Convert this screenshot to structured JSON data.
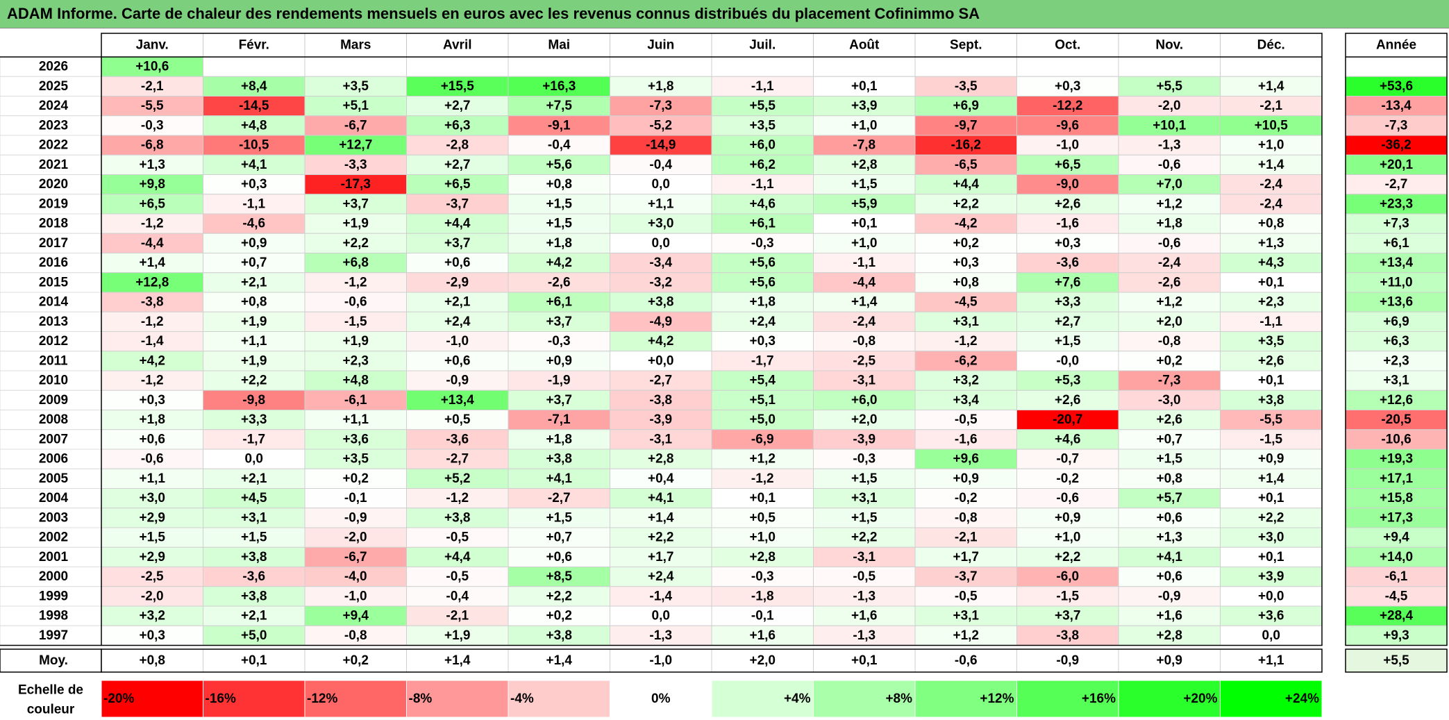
{
  "title": "ADAM Informe. Carte de chaleur des rendements mensuels en euros avec les revenus connus distribués du placement Cofinimmo SA",
  "chart_data": {
    "type": "heatmap",
    "title": "ADAM Informe. Carte de chaleur des rendements mensuels en euros avec les revenus connus distribués du placement Cofinimmo SA",
    "columns": [
      "Janv.",
      "Févr.",
      "Mars",
      "Avril",
      "Mai",
      "Juin",
      "Juil.",
      "Août",
      "Sept.",
      "Oct.",
      "Nov.",
      "Déc."
    ],
    "year_column_label": "Année",
    "rows": [
      {
        "year": "2026",
        "values": [
          "+10,6",
          "",
          "",
          "",
          "",
          "",
          "",
          "",
          "",
          "",
          "",
          ""
        ],
        "annual": ""
      },
      {
        "year": "2025",
        "values": [
          "-2,1",
          "+8,4",
          "+3,5",
          "+15,5",
          "+16,3",
          "+1,8",
          "-1,1",
          "+0,1",
          "-3,5",
          "+0,3",
          "+5,5",
          "+1,4"
        ],
        "annual": "+53,6"
      },
      {
        "year": "2024",
        "values": [
          "-5,5",
          "-14,5",
          "+5,1",
          "+2,7",
          "+7,5",
          "-7,3",
          "+5,5",
          "+3,9",
          "+6,9",
          "-12,2",
          "-2,0",
          "-2,1"
        ],
        "annual": "-13,4"
      },
      {
        "year": "2023",
        "values": [
          "-0,3",
          "+4,8",
          "-6,7",
          "+6,3",
          "-9,1",
          "-5,2",
          "+3,5",
          "+1,0",
          "-9,7",
          "-9,6",
          "+10,1",
          "+10,5"
        ],
        "annual": "-7,3"
      },
      {
        "year": "2022",
        "values": [
          "-6,8",
          "-10,5",
          "+12,7",
          "-2,8",
          "-0,4",
          "-14,9",
          "+6,0",
          "-7,8",
          "-16,2",
          "-1,0",
          "-1,3",
          "+1,0"
        ],
        "annual": "-36,2"
      },
      {
        "year": "2021",
        "values": [
          "+1,3",
          "+4,1",
          "-3,3",
          "+2,7",
          "+5,6",
          "-0,4",
          "+6,2",
          "+2,8",
          "-6,5",
          "+6,5",
          "-0,6",
          "+1,4"
        ],
        "annual": "+20,1"
      },
      {
        "year": "2020",
        "values": [
          "+9,8",
          "+0,3",
          "-17,3",
          "+6,5",
          "+0,8",
          "0,0",
          "-1,1",
          "+1,5",
          "+4,4",
          "-9,0",
          "+7,0",
          "-2,4"
        ],
        "annual": "-2,7"
      },
      {
        "year": "2019",
        "values": [
          "+6,5",
          "-1,1",
          "+3,7",
          "-3,7",
          "+1,5",
          "+1,1",
          "+4,6",
          "+5,9",
          "+2,2",
          "+2,6",
          "+1,2",
          "-2,4"
        ],
        "annual": "+23,3"
      },
      {
        "year": "2018",
        "values": [
          "-1,2",
          "-4,6",
          "+1,9",
          "+4,4",
          "+1,5",
          "+3,0",
          "+6,1",
          "+0,1",
          "-4,2",
          "-1,6",
          "+1,8",
          "+0,8"
        ],
        "annual": "+7,3"
      },
      {
        "year": "2017",
        "values": [
          "-4,4",
          "+0,9",
          "+2,2",
          "+3,7",
          "+1,8",
          "0,0",
          "-0,3",
          "+1,0",
          "+0,2",
          "+0,3",
          "-0,6",
          "+1,3"
        ],
        "annual": "+6,1"
      },
      {
        "year": "2016",
        "values": [
          "+1,4",
          "+0,7",
          "+6,8",
          "+0,6",
          "+4,2",
          "-3,4",
          "+5,6",
          "-1,1",
          "+0,3",
          "-3,6",
          "-2,4",
          "+4,3"
        ],
        "annual": "+13,4"
      },
      {
        "year": "2015",
        "values": [
          "+12,8",
          "+2,1",
          "-1,2",
          "-2,9",
          "-2,6",
          "-3,2",
          "+5,6",
          "-4,4",
          "+0,8",
          "+7,6",
          "-2,6",
          "+0,1"
        ],
        "annual": "+11,0"
      },
      {
        "year": "2014",
        "values": [
          "-3,8",
          "+0,8",
          "-0,6",
          "+2,1",
          "+6,1",
          "+3,8",
          "+1,8",
          "+1,4",
          "-4,5",
          "+3,3",
          "+1,2",
          "+2,3"
        ],
        "annual": "+13,6"
      },
      {
        "year": "2013",
        "values": [
          "-1,2",
          "+1,9",
          "-1,5",
          "+2,4",
          "+3,7",
          "-4,9",
          "+2,4",
          "-2,4",
          "+3,1",
          "+2,7",
          "+2,0",
          "-1,1"
        ],
        "annual": "+6,9"
      },
      {
        "year": "2012",
        "values": [
          "-1,4",
          "+1,1",
          "+1,9",
          "-1,0",
          "-0,3",
          "+4,2",
          "+0,3",
          "-0,8",
          "-1,2",
          "+1,5",
          "-0,8",
          "+3,5"
        ],
        "annual": "+6,3"
      },
      {
        "year": "2011",
        "values": [
          "+4,2",
          "+1,9",
          "+2,3",
          "+0,6",
          "+0,9",
          "+0,0",
          "-1,7",
          "-2,5",
          "-6,2",
          "-0,0",
          "+0,2",
          "+2,6"
        ],
        "annual": "+2,3"
      },
      {
        "year": "2010",
        "values": [
          "-1,2",
          "+2,2",
          "+4,8",
          "-0,9",
          "-1,9",
          "-2,7",
          "+5,4",
          "-3,1",
          "+3,2",
          "+5,3",
          "-7,3",
          "+0,1"
        ],
        "annual": "+3,1"
      },
      {
        "year": "2009",
        "values": [
          "+0,3",
          "-9,8",
          "-6,1",
          "+13,4",
          "+3,7",
          "-3,8",
          "+5,1",
          "+6,0",
          "+3,4",
          "+2,6",
          "-3,0",
          "+3,8"
        ],
        "annual": "+12,6"
      },
      {
        "year": "2008",
        "values": [
          "+1,8",
          "+3,3",
          "+1,1",
          "+0,5",
          "-7,1",
          "-3,9",
          "+5,0",
          "+2,0",
          "-0,5",
          "-20,7",
          "+2,6",
          "-5,5"
        ],
        "annual": "-20,5"
      },
      {
        "year": "2007",
        "values": [
          "+0,6",
          "-1,7",
          "+3,6",
          "-3,6",
          "+1,8",
          "-3,1",
          "-6,9",
          "-3,9",
          "-1,6",
          "+4,6",
          "+0,7",
          "-1,5"
        ],
        "annual": "-10,6"
      },
      {
        "year": "2006",
        "values": [
          "-0,6",
          "0,0",
          "+3,5",
          "-2,7",
          "+3,8",
          "+2,8",
          "+1,2",
          "-0,3",
          "+9,6",
          "-0,7",
          "+1,5",
          "+0,9"
        ],
        "annual": "+19,3"
      },
      {
        "year": "2005",
        "values": [
          "+1,1",
          "+2,1",
          "+0,2",
          "+5,2",
          "+4,1",
          "+0,4",
          "-1,2",
          "+1,5",
          "+0,9",
          "-0,2",
          "+0,8",
          "+1,4"
        ],
        "annual": "+17,1"
      },
      {
        "year": "2004",
        "values": [
          "+3,0",
          "+4,5",
          "-0,1",
          "-1,2",
          "-2,7",
          "+4,1",
          "+0,1",
          "+3,1",
          "-0,2",
          "-0,6",
          "+5,7",
          "+0,1"
        ],
        "annual": "+15,8"
      },
      {
        "year": "2003",
        "values": [
          "+2,9",
          "+3,1",
          "-0,9",
          "+3,8",
          "+1,5",
          "+1,4",
          "+0,5",
          "+1,5",
          "-0,8",
          "+0,9",
          "+0,6",
          "+2,2"
        ],
        "annual": "+17,3"
      },
      {
        "year": "2002",
        "values": [
          "+1,5",
          "+1,5",
          "-2,0",
          "-0,5",
          "+0,7",
          "+2,2",
          "+1,0",
          "+2,2",
          "-2,1",
          "+1,0",
          "+1,3",
          "+3,0"
        ],
        "annual": "+9,4"
      },
      {
        "year": "2001",
        "values": [
          "+2,9",
          "+3,8",
          "-6,7",
          "+4,4",
          "+0,6",
          "+1,7",
          "+2,8",
          "-3,1",
          "+1,7",
          "+2,2",
          "+4,1",
          "+0,1"
        ],
        "annual": "+14,0"
      },
      {
        "year": "2000",
        "values": [
          "-2,5",
          "-3,6",
          "-4,0",
          "-0,5",
          "+8,5",
          "+2,4",
          "-0,3",
          "-0,5",
          "-3,7",
          "-6,0",
          "+0,6",
          "+3,9"
        ],
        "annual": "-6,1"
      },
      {
        "year": "1999",
        "values": [
          "-2,0",
          "+3,8",
          "-1,0",
          "-0,4",
          "+2,2",
          "-1,4",
          "-1,8",
          "-1,3",
          "-0,5",
          "-1,5",
          "-0,9",
          "+0,0"
        ],
        "annual": "-4,5"
      },
      {
        "year": "1998",
        "values": [
          "+3,2",
          "+2,1",
          "+9,4",
          "-2,1",
          "+0,2",
          "0,0",
          "-0,1",
          "+1,6",
          "+3,1",
          "+3,7",
          "+1,6",
          "+3,6"
        ],
        "annual": "+28,4"
      },
      {
        "year": "1997",
        "values": [
          "+0,3",
          "+5,0",
          "-0,8",
          "+1,9",
          "+3,8",
          "-1,3",
          "+1,6",
          "-1,3",
          "+1,2",
          "-3,8",
          "+2,8",
          "0,0"
        ],
        "annual": "+9,3"
      }
    ],
    "average_row": {
      "label": "Moy.",
      "values": [
        "+0,8",
        "+0,1",
        "+0,2",
        "+1,4",
        "+1,4",
        "-1,0",
        "+2,0",
        "+0,1",
        "-0,6",
        "-0,9",
        "+0,9",
        "+1,1"
      ],
      "annual": "+5,5"
    },
    "color_scale": {
      "label_line1": "Echelle de",
      "label_line2": "couleur",
      "steps": [
        {
          "label": "-20%",
          "value": -20,
          "color": "#ff0000"
        },
        {
          "label": "-16%",
          "value": -16,
          "color": "#ff3333"
        },
        {
          "label": "-12%",
          "value": -12,
          "color": "#ff6666"
        },
        {
          "label": "-8%",
          "value": -8,
          "color": "#ff9999"
        },
        {
          "label": "-4%",
          "value": -4,
          "color": "#ffcccc"
        },
        {
          "label": "0%",
          "value": 0,
          "color": "#ffffff"
        },
        {
          "label": "+4%",
          "value": 4,
          "color": "#d5ffd5"
        },
        {
          "label": "+8%",
          "value": 8,
          "color": "#aaffaa"
        },
        {
          "label": "+12%",
          "value": 12,
          "color": "#80ff80"
        },
        {
          "label": "+16%",
          "value": 16,
          "color": "#55ff55"
        },
        {
          "label": "+20%",
          "value": 20,
          "color": "#2bff2b"
        },
        {
          "label": "+24%",
          "value": 24,
          "color": "#00ff00"
        }
      ]
    }
  }
}
